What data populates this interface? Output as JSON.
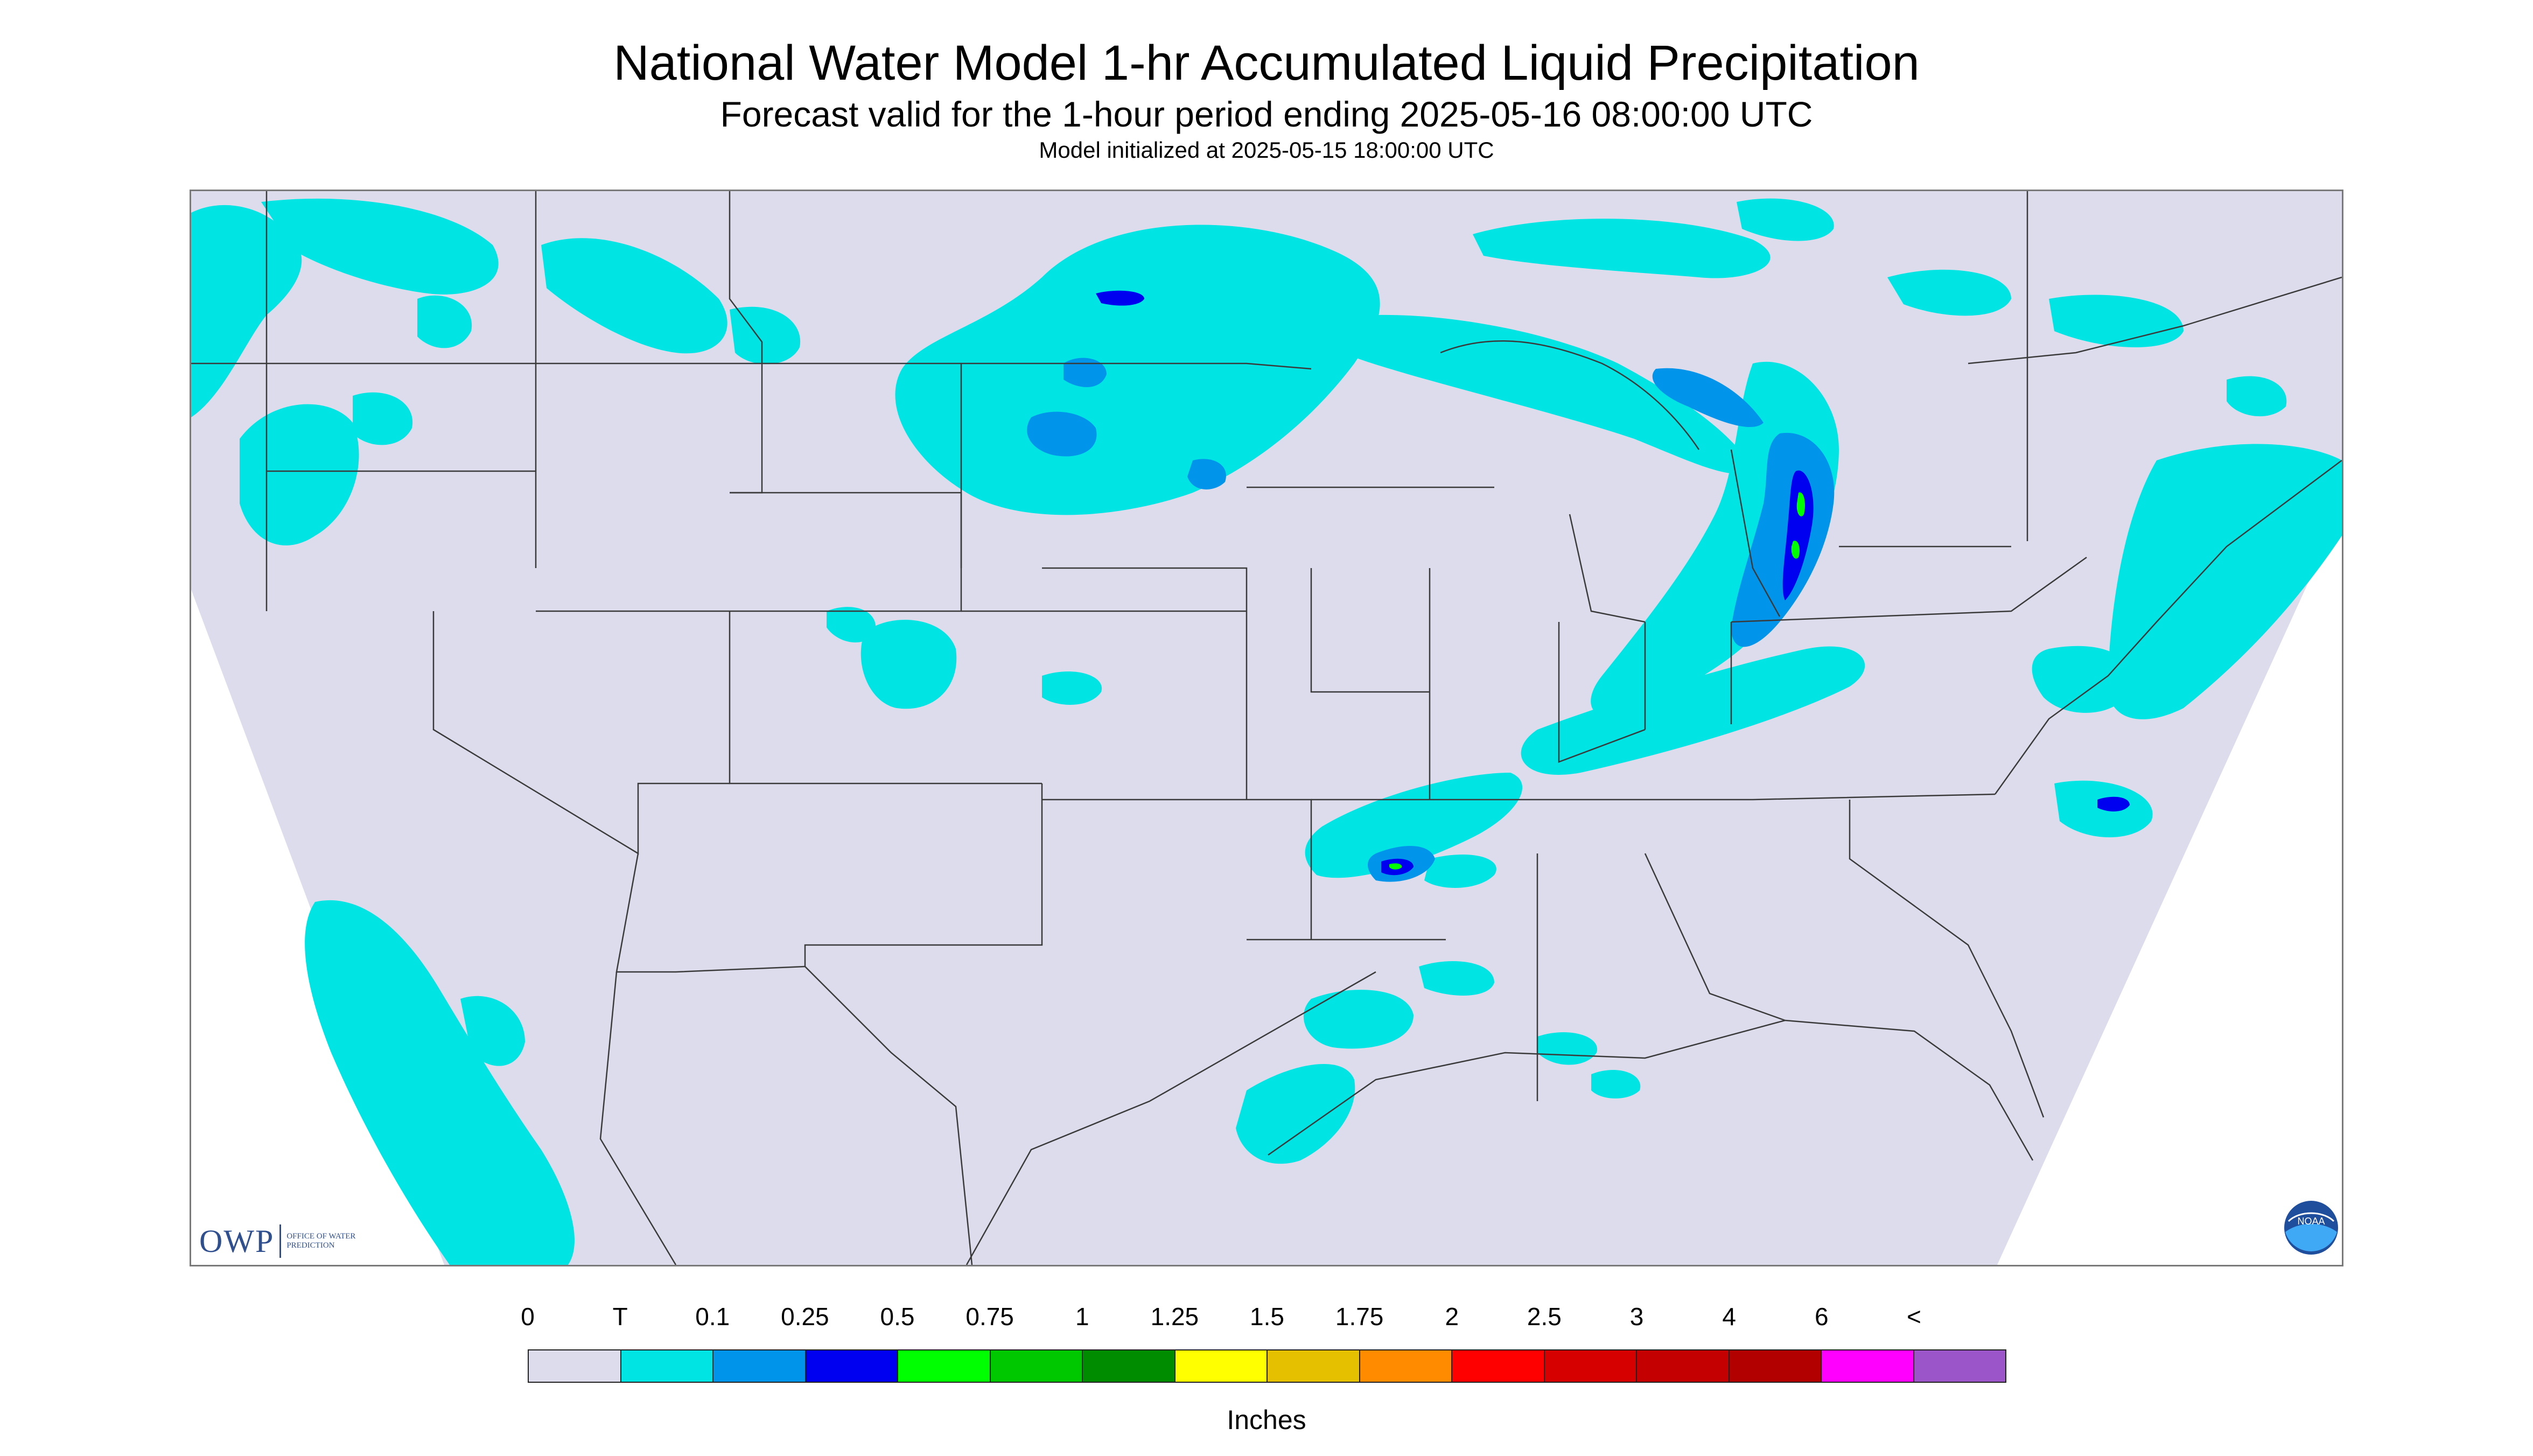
{
  "header": {
    "title": "National Water Model 1-hr Accumulated Liquid Precipitation",
    "subtitle": "Forecast valid for the 1-hour period ending 2025-05-16 08:00:00 UTC",
    "init_line": "Model initialized at 2025-05-15 18:00:00 UTC"
  },
  "logos": {
    "owp_letters": "OWP",
    "owp_full": "OFFICE OF WATER PREDICTION",
    "noaa": "NOAA"
  },
  "legend": {
    "units": "Inches",
    "labels": [
      "0",
      "T",
      "0.1",
      "0.25",
      "0.5",
      "0.75",
      "1",
      "1.25",
      "1.5",
      "1.75",
      "2",
      "2.5",
      "3",
      "4",
      "6",
      "<"
    ],
    "colors": [
      "#dcdcec",
      "#00e4e4",
      "#0095ea",
      "#0000f0",
      "#00ff00",
      "#00c800",
      "#008c00",
      "#ffff00",
      "#e5c000",
      "#ff8c00",
      "#ff0000",
      "#d60000",
      "#c40000",
      "#b20000",
      "#ff00ff",
      "#9c55c8"
    ]
  },
  "map": {
    "background_color": "#dcdcec",
    "outside_color": "#ffffff",
    "light_precip_color": "#00e4e4",
    "moderate_precip_color": "#0095ea",
    "heavy_precip_color": "#0000f0",
    "max_precip_color": "#00ff00",
    "boundary_color": "#3a3a3a"
  }
}
